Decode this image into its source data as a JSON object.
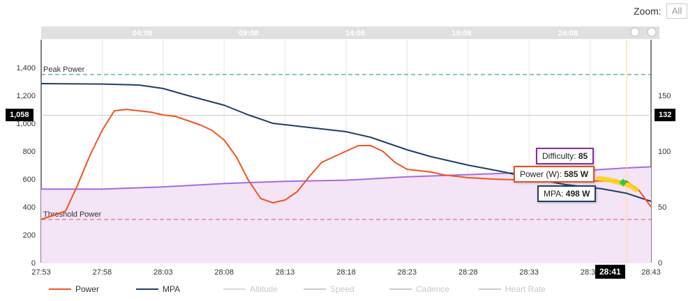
{
  "zoom": {
    "label": "Zoom:",
    "button": "All"
  },
  "navigator": {
    "ticks": [
      "04:08",
      "09:08",
      "14:08",
      "19:08",
      "24:08"
    ]
  },
  "chart_data": {
    "type": "line",
    "x_ticks": [
      "27:53",
      "27:58",
      "28:03",
      "28:08",
      "28:13",
      "28:18",
      "28:23",
      "28:28",
      "28:33",
      "28:38",
      "28:43"
    ],
    "x_range": [
      "27:53",
      "28:43"
    ],
    "y_left": {
      "ticks": [
        0,
        200,
        400,
        600,
        800,
        1000,
        1200,
        1400
      ],
      "range": [
        0,
        1600
      ]
    },
    "y_right": {
      "ticks": [
        0,
        50,
        100,
        150
      ],
      "range": [
        0,
        200
      ]
    },
    "grid": "vertical",
    "plot_bands": [
      {
        "name": "Peak Power",
        "value": 1350,
        "color": "#1a8a8a"
      },
      {
        "name": "Threshold Power",
        "value": 310,
        "color": "#e05a5a"
      }
    ],
    "crosshair": {
      "x": "28:41",
      "y_left": "1,058",
      "y_right": "132"
    },
    "series": [
      {
        "name": "Power",
        "axis": "left",
        "color": "#f4511e",
        "x": [
          "27:53",
          "27:55",
          "27:56",
          "27:57",
          "27:58",
          "27:59",
          "28:00",
          "28:01",
          "28:02",
          "28:03",
          "28:04",
          "28:05",
          "28:06",
          "28:07",
          "28:08",
          "28:09",
          "28:10",
          "28:11",
          "28:12",
          "28:13",
          "28:14",
          "28:15",
          "28:16",
          "28:17",
          "28:18",
          "28:19",
          "28:20",
          "28:21",
          "28:22",
          "28:23",
          "28:24",
          "28:25",
          "28:26",
          "28:27",
          "28:28",
          "28:29",
          "28:30",
          "28:31",
          "28:32",
          "28:33",
          "28:34",
          "28:35",
          "28:36",
          "28:37",
          "28:38",
          "28:39",
          "28:40",
          "28:41",
          "28:42",
          "28:43"
        ],
        "values": [
          310,
          370,
          560,
          770,
          950,
          1090,
          1100,
          1090,
          1080,
          1060,
          1050,
          1020,
          990,
          950,
          880,
          760,
          590,
          460,
          430,
          450,
          510,
          620,
          720,
          760,
          800,
          840,
          840,
          800,
          720,
          670,
          660,
          650,
          630,
          620,
          610,
          605,
          600,
          597,
          595,
          593,
          591,
          590,
          589,
          588,
          587,
          586,
          586,
          585,
          520,
          400
        ]
      },
      {
        "name": "MPA",
        "axis": "left",
        "color": "#1e3f66",
        "x": [
          "27:53",
          "27:58",
          "28:01",
          "28:03",
          "28:05",
          "28:08",
          "28:10",
          "28:12",
          "28:13",
          "28:15",
          "28:18",
          "28:20",
          "28:23",
          "28:25",
          "28:28",
          "28:31",
          "28:33",
          "28:36",
          "28:39",
          "28:41",
          "28:43"
        ],
        "values": [
          1285,
          1282,
          1275,
          1250,
          1200,
          1130,
          1060,
          1000,
          990,
          970,
          940,
          900,
          810,
          760,
          700,
          650,
          610,
          560,
          530,
          498,
          440
        ]
      },
      {
        "name": "Difficulty",
        "axis": "right",
        "color": "#a56be0",
        "fill": "#f3e4f6",
        "x": [
          "27:53",
          "27:58",
          "28:03",
          "28:08",
          "28:13",
          "28:18",
          "28:23",
          "28:28",
          "28:33",
          "28:38",
          "28:41",
          "28:43"
        ],
        "values": [
          66,
          66,
          68,
          71,
          73,
          74,
          77,
          79,
          81,
          83,
          85,
          86
        ]
      }
    ],
    "legend": [
      {
        "name": "Power",
        "color": "#f4511e",
        "visible": true
      },
      {
        "name": "MPA",
        "color": "#1e3f66",
        "visible": true
      },
      {
        "name": "Altitude",
        "color": "#d8d8d8",
        "visible": false
      },
      {
        "name": "Speed",
        "color": "#cccccc",
        "visible": false
      },
      {
        "name": "Cadence",
        "color": "#cccccc",
        "visible": false
      },
      {
        "name": "Heart Rate",
        "color": "#cccccc",
        "visible": false
      }
    ]
  },
  "tooltips": {
    "difficulty": {
      "label": "Difficulty:",
      "value": "85",
      "color": "#8a2da0"
    },
    "power": {
      "label": "Power (W):",
      "value": "585 W",
      "color": "#e5511e"
    },
    "mpa": {
      "label": "MPA:",
      "value": "498 W",
      "color": "#1e3f66"
    }
  }
}
